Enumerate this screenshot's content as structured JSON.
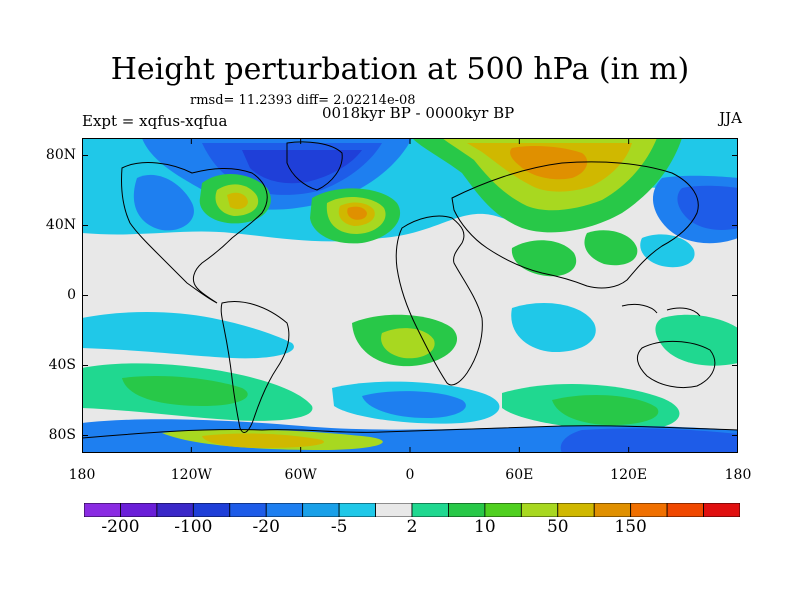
{
  "title": "Height perturbation at 500 hPa (in m)",
  "stats": "rmsd= 11.2393 diff= 2.02214e-08",
  "experiment": "Expt = xqfus-xqfua",
  "period": "0018kyr BP - 0000kyr BP",
  "season": "JJA",
  "map": {
    "projection": "cylindrical equidistant",
    "lat_range": [
      -90,
      90
    ],
    "lon_range": [
      -180,
      180
    ],
    "lat_ticks": [
      {
        "value": 80,
        "label": "80N"
      },
      {
        "value": 40,
        "label": "40N"
      },
      {
        "value": 0,
        "label": "0"
      },
      {
        "value": -40,
        "label": "40S"
      },
      {
        "value": -80,
        "label": "80S"
      }
    ],
    "lon_ticks": [
      {
        "value": -180,
        "label": "180"
      },
      {
        "value": -120,
        "label": "120W"
      },
      {
        "value": -60,
        "label": "60W"
      },
      {
        "value": 0,
        "label": "0"
      },
      {
        "value": 60,
        "label": "60E"
      },
      {
        "value": 120,
        "label": "120E"
      },
      {
        "value": 180,
        "label": "180"
      }
    ]
  },
  "colorbar": {
    "colors": [
      "#8a2be2",
      "#6a1fd8",
      "#3a28c8",
      "#1f3fd8",
      "#1e5ce8",
      "#1e7ff0",
      "#1aa0e8",
      "#20c8e8",
      "#e8e8e8",
      "#20d890",
      "#28c848",
      "#50d020",
      "#a8d820",
      "#d0b800",
      "#e09000",
      "#f07000",
      "#f04800",
      "#e01010"
    ],
    "labels": [
      {
        "index": 1,
        "text": "-200"
      },
      {
        "index": 3,
        "text": "-100"
      },
      {
        "index": 5,
        "text": "-20"
      },
      {
        "index": 7,
        "text": "-5"
      },
      {
        "index": 9,
        "text": "2"
      },
      {
        "index": 11,
        "text": "10"
      },
      {
        "index": 13,
        "text": "50"
      },
      {
        "index": 15,
        "text": "150"
      }
    ]
  }
}
